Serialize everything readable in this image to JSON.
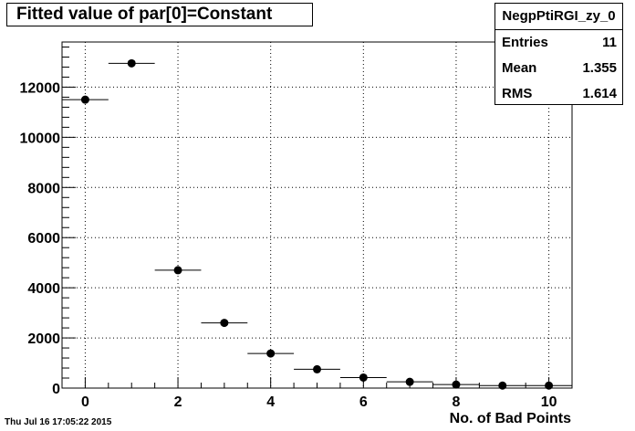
{
  "chart_data": {
    "type": "scatter",
    "title": "Fitted value of par[0]=Constant",
    "xlabel": "No. of Bad Points",
    "ylabel": "",
    "xlim": [
      -0.5,
      10.5
    ],
    "ylim": [
      0,
      13800
    ],
    "x_ticks": [
      0,
      2,
      4,
      6,
      8,
      10
    ],
    "y_ticks": [
      0,
      2000,
      4000,
      6000,
      8000,
      10000,
      12000
    ],
    "grid": true,
    "bin_width": 1,
    "points": [
      {
        "x": 0,
        "y": 11500
      },
      {
        "x": 1,
        "y": 12950
      },
      {
        "x": 2,
        "y": 4700
      },
      {
        "x": 3,
        "y": 2600
      },
      {
        "x": 4,
        "y": 1380
      },
      {
        "x": 5,
        "y": 750
      },
      {
        "x": 6,
        "y": 420
      },
      {
        "x": 7,
        "y": 250
      },
      {
        "x": 8,
        "y": 140
      },
      {
        "x": 9,
        "y": 100
      },
      {
        "x": 10,
        "y": 100
      }
    ],
    "stats": {
      "name": "NegpPtiRGI_zy_0",
      "rows": [
        {
          "label": "Entries",
          "value": "11"
        },
        {
          "label": "Mean",
          "value": "1.355"
        },
        {
          "label": "RMS",
          "value": "1.614"
        }
      ]
    }
  },
  "datestamp": "Thu Jul 16 17:05:22 2015"
}
